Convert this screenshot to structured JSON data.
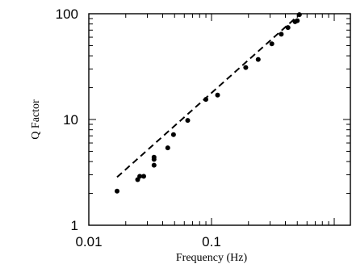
{
  "chart_data": {
    "type": "scatter",
    "title": "",
    "xlabel": "Frequency (Hz)",
    "ylabel": "Q Factor",
    "xscale": "log",
    "yscale": "log",
    "xlim": [
      0.01,
      1
    ],
    "ylim": [
      1,
      100
    ],
    "grid": false,
    "x_tick_labels": [
      "0.01",
      "0.1"
    ],
    "x_ticks": [
      0.01,
      0.1
    ],
    "y_tick_labels": [
      "1",
      "10",
      "100"
    ],
    "y_ticks": [
      1,
      10,
      100
    ],
    "series": [
      {
        "style": "points",
        "x": [
          0.017,
          0.025,
          0.026,
          0.028,
          0.034,
          0.034,
          0.034,
          0.044,
          0.049,
          0.064,
          0.09,
          0.112,
          0.19,
          0.24,
          0.31,
          0.37,
          0.42,
          0.48,
          0.5,
          0.52
        ],
        "y": [
          2.1,
          2.7,
          2.9,
          2.9,
          3.7,
          4.2,
          4.4,
          5.4,
          7.2,
          9.8,
          15.5,
          17.0,
          31.0,
          37.0,
          52.0,
          64.0,
          74.0,
          84.0,
          86.0,
          98.0
        ]
      },
      {
        "style": "dashed-line",
        "x": [
          0.017,
          0.52
        ],
        "y": [
          2.85,
          98.0
        ]
      }
    ]
  },
  "colors": {
    "points": "#000000",
    "line": "#000000",
    "axes": "#000000"
  }
}
